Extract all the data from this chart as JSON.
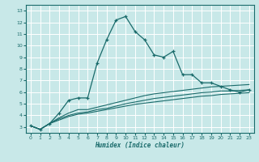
{
  "xlabel": "Humidex (Indice chaleur)",
  "bg_color": "#c8e8e8",
  "line_color": "#1a6b6b",
  "grid_color": "#ffffff",
  "xlim": [
    -0.5,
    23.5
  ],
  "ylim": [
    2.5,
    13.5
  ],
  "xticks": [
    0,
    1,
    2,
    3,
    4,
    5,
    6,
    7,
    8,
    9,
    10,
    11,
    12,
    13,
    14,
    15,
    16,
    17,
    18,
    19,
    20,
    21,
    22,
    23
  ],
  "yticks": [
    3,
    4,
    5,
    6,
    7,
    8,
    9,
    10,
    11,
    12,
    13
  ],
  "series1_x": [
    0,
    1,
    2,
    3,
    4,
    5,
    6,
    7,
    8,
    9,
    10,
    11,
    12,
    13,
    14,
    15,
    16,
    17,
    18,
    19,
    20,
    21,
    22,
    23
  ],
  "series1_y": [
    3.1,
    2.8,
    3.3,
    4.2,
    5.3,
    5.5,
    5.5,
    8.5,
    10.5,
    12.2,
    12.5,
    11.2,
    10.5,
    9.2,
    9.0,
    9.5,
    7.5,
    7.5,
    6.8,
    6.8,
    6.5,
    6.2,
    6.0,
    6.2
  ],
  "series2_x": [
    0,
    1,
    2,
    3,
    4,
    5,
    6,
    7,
    8,
    9,
    10,
    11,
    12,
    13,
    14,
    15,
    16,
    17,
    18,
    19,
    20,
    21,
    22,
    23
  ],
  "series2_y": [
    3.1,
    2.8,
    3.3,
    3.8,
    4.2,
    4.5,
    4.5,
    4.7,
    4.9,
    5.1,
    5.3,
    5.5,
    5.7,
    5.85,
    5.95,
    6.05,
    6.15,
    6.25,
    6.35,
    6.45,
    6.5,
    6.55,
    6.6,
    6.65
  ],
  "series3_x": [
    0,
    1,
    2,
    3,
    4,
    5,
    6,
    7,
    8,
    9,
    10,
    11,
    12,
    13,
    14,
    15,
    16,
    17,
    18,
    19,
    20,
    21,
    22,
    23
  ],
  "series3_y": [
    3.1,
    2.8,
    3.3,
    3.7,
    4.0,
    4.2,
    4.3,
    4.5,
    4.6,
    4.8,
    5.0,
    5.15,
    5.3,
    5.45,
    5.55,
    5.65,
    5.75,
    5.85,
    5.95,
    6.0,
    6.1,
    6.1,
    6.15,
    6.2
  ],
  "series4_x": [
    0,
    1,
    2,
    3,
    4,
    5,
    6,
    7,
    8,
    9,
    10,
    11,
    12,
    13,
    14,
    15,
    16,
    17,
    18,
    19,
    20,
    21,
    22,
    23
  ],
  "series4_y": [
    3.1,
    2.8,
    3.3,
    3.6,
    3.9,
    4.1,
    4.2,
    4.35,
    4.5,
    4.65,
    4.8,
    4.95,
    5.05,
    5.15,
    5.25,
    5.35,
    5.45,
    5.55,
    5.65,
    5.7,
    5.8,
    5.85,
    5.9,
    5.95
  ]
}
